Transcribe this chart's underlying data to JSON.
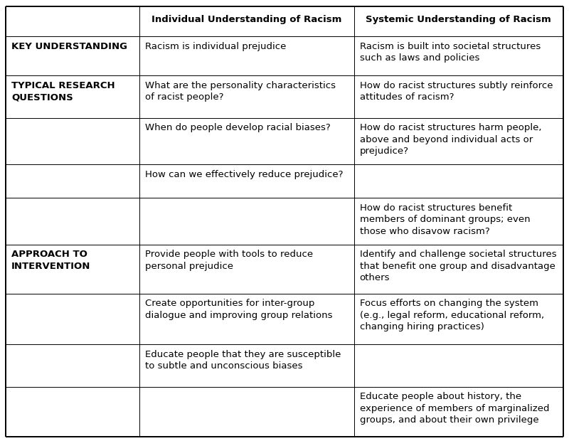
{
  "bg_color": "#ffffff",
  "border_color": "#000000",
  "text_color": "#000000",
  "figsize": [
    8.0,
    6.2
  ],
  "dpi": 100,
  "headers": [
    "",
    "Individual Understanding of Racism",
    "Systemic Understanding of Racism"
  ],
  "header_fontsize": 9.5,
  "cell_fontsize": 9.5,
  "label_fontsize": 9.5,
  "col0_wrap": 18,
  "col1_wrap": 33,
  "col2_wrap": 33,
  "rows": [
    {
      "label": "KEY UNDERSTANDING",
      "col1": "Racism is individual prejudice",
      "col2": "Racism is built into societal structures\nsuch as laws and policies"
    },
    {
      "label": "TYPICAL RESEARCH\nQUESTIONS",
      "col1": "What are the personality characteristics\nof racist people?",
      "col2": "How do racist structures subtly reinforce\nattitudes of racism?"
    },
    {
      "label": "",
      "col1": "When do people develop racial biases?",
      "col2": "How do racist structures harm people,\nabove and beyond individual acts or\nprejudice?"
    },
    {
      "label": "",
      "col1": "How can we effectively reduce prejudice?",
      "col2": ""
    },
    {
      "label": "",
      "col1": "",
      "col2": "How do racist structures benefit\nmembers of dominant groups; even\nthose who disavow racism?"
    },
    {
      "label": "APPROACH TO\nINTERVENTION",
      "col1": "Provide people with tools to reduce\npersonal prejudice",
      "col2": "Identify and challenge societal structures\nthat benefit one group and disadvantage\nothers"
    },
    {
      "label": "",
      "col1": "Create opportunities for inter-group\ndialogue and improving group relations",
      "col2": "Focus efforts on changing the system\n(e.g., legal reform, educational reform,\nchanging hiring practices)"
    },
    {
      "label": "",
      "col1": "Educate people that they are susceptible\nto subtle and unconscious biases",
      "col2": ""
    },
    {
      "label": "",
      "col1": "",
      "col2": "Educate people about history, the\nexperience of members of marginalized\ngroups, and about their own privilege"
    }
  ]
}
